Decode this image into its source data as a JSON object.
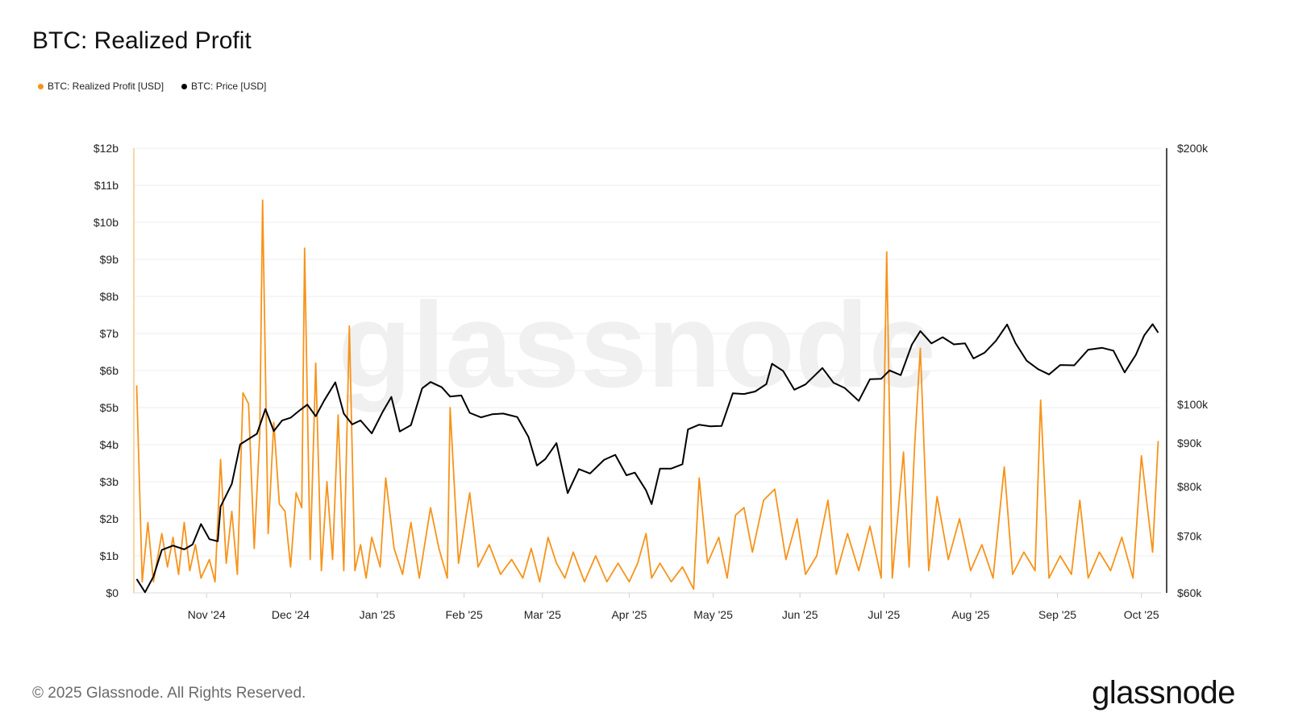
{
  "title": "BTC: Realized Profit",
  "legend": [
    {
      "label": "BTC: Realized Profit [USD]",
      "color": "#f7931a"
    },
    {
      "label": "BTC: Price [USD]",
      "color": "#000000"
    }
  ],
  "watermark": "glassnode",
  "footer": {
    "copyright": "© 2025 Glassnode. All Rights Reserved.",
    "brand": "glassnode"
  },
  "chart_data": {
    "type": "line",
    "x_axis": {
      "labels": [
        "Nov '24",
        "Dec '24",
        "Jan '25",
        "Feb '25",
        "Mar '25",
        "Apr '25",
        "May '25",
        "Jun '25",
        "Jul '25",
        "Aug '25",
        "Sep '25",
        "Oct '25"
      ],
      "start": "2024-10-06",
      "end": "2025-10-08"
    },
    "y_left": {
      "ticks": [
        "$0",
        "$1b",
        "$2b",
        "$3b",
        "$4b",
        "$5b",
        "$6b",
        "$7b",
        "$8b",
        "$9b",
        "$10b",
        "$11b",
        "$12b"
      ],
      "range": [
        0,
        12
      ],
      "unit": "billion USD"
    },
    "y_right": {
      "ticks": [
        "$60k",
        "$70k",
        "$80k",
        "$90k",
        "$100k",
        "$200k"
      ],
      "tick_values": [
        60000,
        70000,
        80000,
        90000,
        100000,
        200000
      ],
      "scale": "log",
      "range": [
        60000,
        200000
      ]
    },
    "grid": true,
    "series": [
      {
        "name": "BTC: Realized Profit [USD]",
        "color": "#f7931a",
        "axis": "left",
        "points": [
          [
            "2024-10-07",
            5.6
          ],
          [
            "2024-10-09",
            0.3
          ],
          [
            "2024-10-11",
            1.9
          ],
          [
            "2024-10-13",
            0.3
          ],
          [
            "2024-10-16",
            1.6
          ],
          [
            "2024-10-18",
            0.7
          ],
          [
            "2024-10-20",
            1.5
          ],
          [
            "2024-10-22",
            0.5
          ],
          [
            "2024-10-24",
            1.9
          ],
          [
            "2024-10-26",
            0.6
          ],
          [
            "2024-10-28",
            1.3
          ],
          [
            "2024-10-30",
            0.4
          ],
          [
            "2024-11-02",
            0.9
          ],
          [
            "2024-11-04",
            0.3
          ],
          [
            "2024-11-06",
            3.6
          ],
          [
            "2024-11-08",
            0.8
          ],
          [
            "2024-11-10",
            2.2
          ],
          [
            "2024-11-12",
            0.5
          ],
          [
            "2024-11-14",
            5.4
          ],
          [
            "2024-11-16",
            5.1
          ],
          [
            "2024-11-18",
            1.2
          ],
          [
            "2024-11-20",
            4.3
          ],
          [
            "2024-11-21",
            10.6
          ],
          [
            "2024-11-23",
            1.6
          ],
          [
            "2024-11-25",
            4.6
          ],
          [
            "2024-11-27",
            2.4
          ],
          [
            "2024-11-29",
            2.2
          ],
          [
            "2024-12-01",
            0.7
          ],
          [
            "2024-12-03",
            2.7
          ],
          [
            "2024-12-05",
            2.3
          ],
          [
            "2024-12-06",
            9.3
          ],
          [
            "2024-12-08",
            0.9
          ],
          [
            "2024-12-10",
            6.2
          ],
          [
            "2024-12-12",
            0.6
          ],
          [
            "2024-12-14",
            3.0
          ],
          [
            "2024-12-16",
            0.9
          ],
          [
            "2024-12-18",
            4.8
          ],
          [
            "2024-12-20",
            0.6
          ],
          [
            "2024-12-22",
            7.2
          ],
          [
            "2024-12-24",
            0.6
          ],
          [
            "2024-12-26",
            1.3
          ],
          [
            "2024-12-28",
            0.4
          ],
          [
            "2024-12-30",
            1.5
          ],
          [
            "2025-01-02",
            0.7
          ],
          [
            "2025-01-04",
            3.1
          ],
          [
            "2025-01-07",
            1.2
          ],
          [
            "2025-01-10",
            0.5
          ],
          [
            "2025-01-13",
            1.9
          ],
          [
            "2025-01-16",
            0.4
          ],
          [
            "2025-01-20",
            2.3
          ],
          [
            "2025-01-23",
            1.2
          ],
          [
            "2025-01-26",
            0.4
          ],
          [
            "2025-01-27",
            5.0
          ],
          [
            "2025-01-30",
            0.8
          ],
          [
            "2025-02-03",
            2.7
          ],
          [
            "2025-02-06",
            0.7
          ],
          [
            "2025-02-10",
            1.3
          ],
          [
            "2025-02-14",
            0.5
          ],
          [
            "2025-02-18",
            0.9
          ],
          [
            "2025-02-22",
            0.4
          ],
          [
            "2025-02-25",
            1.2
          ],
          [
            "2025-02-28",
            0.3
          ],
          [
            "2025-03-03",
            1.5
          ],
          [
            "2025-03-06",
            0.8
          ],
          [
            "2025-03-09",
            0.4
          ],
          [
            "2025-03-12",
            1.1
          ],
          [
            "2025-03-16",
            0.3
          ],
          [
            "2025-03-20",
            1.0
          ],
          [
            "2025-03-24",
            0.3
          ],
          [
            "2025-03-28",
            0.8
          ],
          [
            "2025-04-01",
            0.3
          ],
          [
            "2025-04-04",
            0.8
          ],
          [
            "2025-04-07",
            1.6
          ],
          [
            "2025-04-09",
            0.4
          ],
          [
            "2025-04-12",
            0.8
          ],
          [
            "2025-04-16",
            0.3
          ],
          [
            "2025-04-20",
            0.7
          ],
          [
            "2025-04-24",
            0.1
          ],
          [
            "2025-04-26",
            3.1
          ],
          [
            "2025-04-29",
            0.8
          ],
          [
            "2025-05-03",
            1.5
          ],
          [
            "2025-05-06",
            0.4
          ],
          [
            "2025-05-09",
            2.1
          ],
          [
            "2025-05-12",
            2.3
          ],
          [
            "2025-05-15",
            1.1
          ],
          [
            "2025-05-19",
            2.5
          ],
          [
            "2025-05-23",
            2.8
          ],
          [
            "2025-05-27",
            0.9
          ],
          [
            "2025-05-31",
            2.0
          ],
          [
            "2025-06-03",
            0.5
          ],
          [
            "2025-06-07",
            1.0
          ],
          [
            "2025-06-11",
            2.5
          ],
          [
            "2025-06-14",
            0.5
          ],
          [
            "2025-06-18",
            1.6
          ],
          [
            "2025-06-22",
            0.6
          ],
          [
            "2025-06-26",
            1.8
          ],
          [
            "2025-06-30",
            0.4
          ],
          [
            "2025-07-02",
            9.2
          ],
          [
            "2025-07-04",
            0.4
          ],
          [
            "2025-07-08",
            3.8
          ],
          [
            "2025-07-10",
            0.7
          ],
          [
            "2025-07-12",
            4.0
          ],
          [
            "2025-07-14",
            6.6
          ],
          [
            "2025-07-17",
            0.6
          ],
          [
            "2025-07-20",
            2.6
          ],
          [
            "2025-07-24",
            0.9
          ],
          [
            "2025-07-28",
            2.0
          ],
          [
            "2025-08-01",
            0.6
          ],
          [
            "2025-08-05",
            1.3
          ],
          [
            "2025-08-09",
            0.4
          ],
          [
            "2025-08-13",
            3.4
          ],
          [
            "2025-08-16",
            0.5
          ],
          [
            "2025-08-20",
            1.1
          ],
          [
            "2025-08-24",
            0.6
          ],
          [
            "2025-08-26",
            5.2
          ],
          [
            "2025-08-29",
            0.4
          ],
          [
            "2025-09-02",
            1.0
          ],
          [
            "2025-09-06",
            0.5
          ],
          [
            "2025-09-09",
            2.5
          ],
          [
            "2025-09-12",
            0.4
          ],
          [
            "2025-09-16",
            1.1
          ],
          [
            "2025-09-20",
            0.6
          ],
          [
            "2025-09-24",
            1.5
          ],
          [
            "2025-09-28",
            0.4
          ],
          [
            "2025-10-01",
            3.7
          ],
          [
            "2025-10-03",
            2.4
          ],
          [
            "2025-10-05",
            1.1
          ],
          [
            "2025-10-07",
            4.1
          ]
        ]
      },
      {
        "name": "BTC: Price [USD]",
        "color": "#000000",
        "axis": "right",
        "points": [
          [
            "2024-10-07",
            62300
          ],
          [
            "2024-10-10",
            60100
          ],
          [
            "2024-10-13",
            62700
          ],
          [
            "2024-10-16",
            67400
          ],
          [
            "2024-10-20",
            68200
          ],
          [
            "2024-10-24",
            67500
          ],
          [
            "2024-10-27",
            68400
          ],
          [
            "2024-10-30",
            72300
          ],
          [
            "2024-11-02",
            69400
          ],
          [
            "2024-11-05",
            69000
          ],
          [
            "2024-11-06",
            75800
          ],
          [
            "2024-11-10",
            80600
          ],
          [
            "2024-11-13",
            89700
          ],
          [
            "2024-11-16",
            91000
          ],
          [
            "2024-11-19",
            92300
          ],
          [
            "2024-11-22",
            98700
          ],
          [
            "2024-11-25",
            93000
          ],
          [
            "2024-11-28",
            95700
          ],
          [
            "2024-12-01",
            96400
          ],
          [
            "2024-12-04",
            98200
          ],
          [
            "2024-12-07",
            99900
          ],
          [
            "2024-12-10",
            96800
          ],
          [
            "2024-12-13",
            101000
          ],
          [
            "2024-12-17",
            106100
          ],
          [
            "2024-12-20",
            97500
          ],
          [
            "2024-12-23",
            94700
          ],
          [
            "2024-12-26",
            95700
          ],
          [
            "2024-12-30",
            92400
          ],
          [
            "2025-01-03",
            98100
          ],
          [
            "2025-01-06",
            102000
          ],
          [
            "2025-01-09",
            92900
          ],
          [
            "2025-01-13",
            94500
          ],
          [
            "2025-01-17",
            104400
          ],
          [
            "2025-01-20",
            106200
          ],
          [
            "2025-01-24",
            104700
          ],
          [
            "2025-01-27",
            102100
          ],
          [
            "2025-01-31",
            102400
          ],
          [
            "2025-02-03",
            97700
          ],
          [
            "2025-02-07",
            96500
          ],
          [
            "2025-02-11",
            97300
          ],
          [
            "2025-02-15",
            97500
          ],
          [
            "2025-02-20",
            96600
          ],
          [
            "2025-02-24",
            91500
          ],
          [
            "2025-02-27",
            84700
          ],
          [
            "2025-03-02",
            86200
          ],
          [
            "2025-03-06",
            90000
          ],
          [
            "2025-03-10",
            78600
          ],
          [
            "2025-03-14",
            83900
          ],
          [
            "2025-03-18",
            82900
          ],
          [
            "2025-03-23",
            86000
          ],
          [
            "2025-03-27",
            87200
          ],
          [
            "2025-03-31",
            82500
          ],
          [
            "2025-04-03",
            83100
          ],
          [
            "2025-04-07",
            79200
          ],
          [
            "2025-04-09",
            76300
          ],
          [
            "2025-04-12",
            84000
          ],
          [
            "2025-04-16",
            84000
          ],
          [
            "2025-04-20",
            85000
          ],
          [
            "2025-04-22",
            93400
          ],
          [
            "2025-04-26",
            94600
          ],
          [
            "2025-04-30",
            94200
          ],
          [
            "2025-05-04",
            94300
          ],
          [
            "2025-05-08",
            103000
          ],
          [
            "2025-05-12",
            102800
          ],
          [
            "2025-05-16",
            103500
          ],
          [
            "2025-05-20",
            105600
          ],
          [
            "2025-05-22",
            111600
          ],
          [
            "2025-05-26",
            109400
          ],
          [
            "2025-05-30",
            104000
          ],
          [
            "2025-06-03",
            105500
          ],
          [
            "2025-06-09",
            110300
          ],
          [
            "2025-06-13",
            106000
          ],
          [
            "2025-06-17",
            104500
          ],
          [
            "2025-06-22",
            100900
          ],
          [
            "2025-06-26",
            107000
          ],
          [
            "2025-06-30",
            107100
          ],
          [
            "2025-07-03",
            109600
          ],
          [
            "2025-07-07",
            108200
          ],
          [
            "2025-07-11",
            117500
          ],
          [
            "2025-07-14",
            121900
          ],
          [
            "2025-07-18",
            117900
          ],
          [
            "2025-07-22",
            119900
          ],
          [
            "2025-07-26",
            117600
          ],
          [
            "2025-07-30",
            117900
          ],
          [
            "2025-08-02",
            113200
          ],
          [
            "2025-08-06",
            115000
          ],
          [
            "2025-08-10",
            118700
          ],
          [
            "2025-08-14",
            124100
          ],
          [
            "2025-08-17",
            118000
          ],
          [
            "2025-08-21",
            112500
          ],
          [
            "2025-08-25",
            110000
          ],
          [
            "2025-08-29",
            108400
          ],
          [
            "2025-09-02",
            111200
          ],
          [
            "2025-09-07",
            111100
          ],
          [
            "2025-09-12",
            115900
          ],
          [
            "2025-09-17",
            116500
          ],
          [
            "2025-09-21",
            115600
          ],
          [
            "2025-09-25",
            109000
          ],
          [
            "2025-09-29",
            114300
          ],
          [
            "2025-10-02",
            120500
          ],
          [
            "2025-10-05",
            124200
          ],
          [
            "2025-10-07",
            121400
          ]
        ]
      }
    ]
  }
}
